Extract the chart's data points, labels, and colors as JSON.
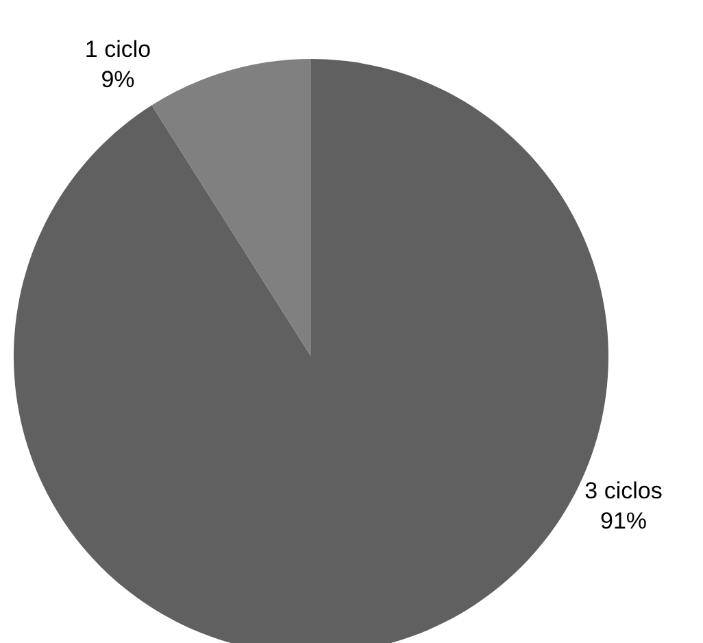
{
  "chart_data": {
    "type": "pie",
    "categories": [
      "3 ciclos",
      "1 ciclo"
    ],
    "values": [
      91,
      9
    ],
    "colors": [
      "#606060",
      "#808080"
    ],
    "value_labels": [
      "91%",
      "9%"
    ],
    "legend": false
  }
}
